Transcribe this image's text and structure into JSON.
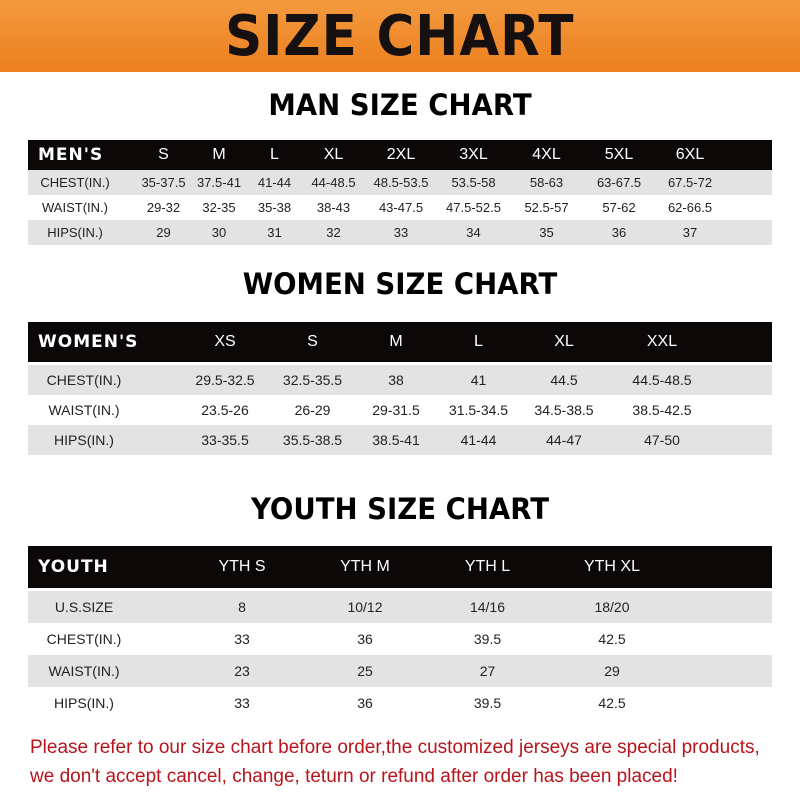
{
  "title": "SIZE CHART",
  "colors": {
    "banner": "#ee8526",
    "header_bg": "#0c0808",
    "row_alt": "#e3e3e3",
    "notice": "#b8141b"
  },
  "men": {
    "title": "MAN SIZE CHART",
    "header": "MEN'S",
    "sizes": [
      "S",
      "M",
      "L",
      "XL",
      "2XL",
      "3XL",
      "4XL",
      "5XL",
      "6XL"
    ],
    "rows": [
      {
        "label": "CHEST(IN.)",
        "values": [
          "35-37.5",
          "37.5-41",
          "41-44",
          "44-48.5",
          "48.5-53.5",
          "53.5-58",
          "58-63",
          "63-67.5",
          "67.5-72"
        ]
      },
      {
        "label": "WAIST(IN.)",
        "values": [
          "29-32",
          "32-35",
          "35-38",
          "38-43",
          "43-47.5",
          "47.5-52.5",
          "52.5-57",
          "57-62",
          "62-66.5"
        ]
      },
      {
        "label": "HIPS(IN.)",
        "values": [
          "29",
          "30",
          "31",
          "32",
          "33",
          "34",
          "35",
          "36",
          "37"
        ]
      }
    ]
  },
  "women": {
    "title": "WOMEN SIZE CHART",
    "header": "WOMEN'S",
    "sizes": [
      "XS",
      "S",
      "M",
      "L",
      "XL",
      "XXL"
    ],
    "rows": [
      {
        "label": "CHEST(IN.)",
        "values": [
          "29.5-32.5",
          "32.5-35.5",
          "38",
          "41",
          "44.5",
          "44.5-48.5"
        ]
      },
      {
        "label": "WAIST(IN.)",
        "values": [
          "23.5-26",
          "26-29",
          "29-31.5",
          "31.5-34.5",
          "34.5-38.5",
          "38.5-42.5"
        ]
      },
      {
        "label": "HIPS(IN.)",
        "values": [
          "33-35.5",
          "35.5-38.5",
          "38.5-41",
          "41-44",
          "44-47",
          "47-50"
        ]
      }
    ]
  },
  "youth": {
    "title": "YOUTH SIZE CHART",
    "header": "YOUTH",
    "sizes": [
      "YTH S",
      "YTH M",
      "YTH L",
      "YTH XL"
    ],
    "rows": [
      {
        "label": "U.S.SIZE",
        "values": [
          "8",
          "10/12",
          "14/16",
          "18/20"
        ]
      },
      {
        "label": "CHEST(IN.)",
        "values": [
          "33",
          "36",
          "39.5",
          "42.5"
        ]
      },
      {
        "label": "WAIST(IN.)",
        "values": [
          "23",
          "25",
          "27",
          "29"
        ]
      },
      {
        "label": "HIPS(IN.)",
        "values": [
          "33",
          "36",
          "39.5",
          "42.5"
        ]
      }
    ]
  },
  "notice": {
    "line1": "Please refer to our size chart before order,the customized jerseys are special products,",
    "line2": "we don't accept cancel, change, teturn or refund after order has been placed!"
  }
}
